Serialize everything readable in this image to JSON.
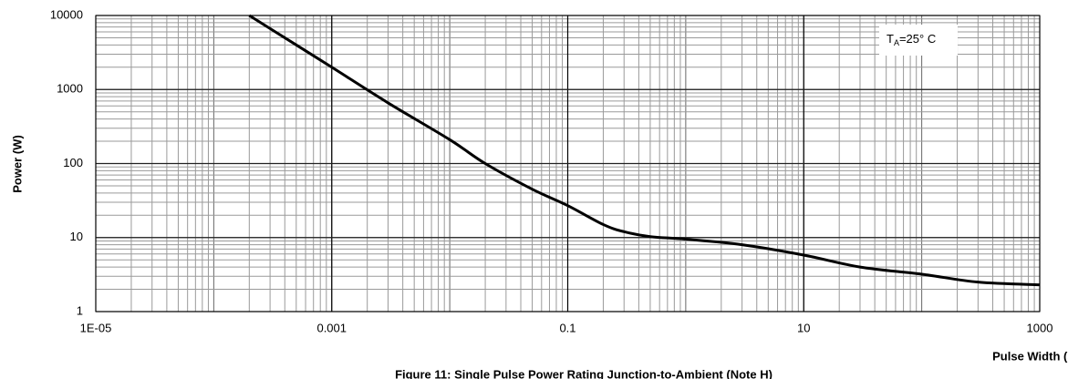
{
  "chart_data": {
    "type": "line",
    "title": "Figure 11: Single Pulse Power Rating Junction-to-Ambient (Note H)",
    "x_label": "Pulse Width (s)",
    "y_label": "Power (W)",
    "annotation": {
      "main": "T",
      "sub": "A",
      "rest": "=25° C"
    },
    "log_x": true,
    "log_y": true,
    "grid": true,
    "xlim": [
      1e-05,
      1000
    ],
    "ylim": [
      1,
      10000
    ],
    "xticks": [
      {
        "value": 1e-05,
        "label": "1E-05"
      },
      0.001,
      0.1,
      10,
      1000
    ],
    "yticks": [
      1,
      10,
      100,
      1000,
      10000
    ],
    "series": [
      {
        "name": "Power",
        "color": "#000000",
        "x": [
          0.0002,
          0.0005,
          0.001,
          0.003,
          0.01,
          0.02,
          0.05,
          0.1,
          0.2,
          0.3,
          0.5,
          1,
          3,
          10,
          30,
          100,
          300,
          1000
        ],
        "values": [
          10000,
          4000,
          2000,
          660,
          210,
          100,
          45,
          27,
          15,
          12,
          10.3,
          9.5,
          8,
          5.8,
          4,
          3.2,
          2.5,
          2.3
        ]
      }
    ]
  }
}
